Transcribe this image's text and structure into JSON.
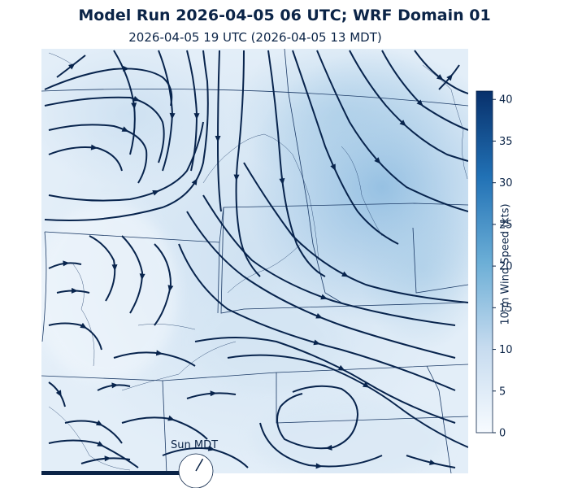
{
  "header": {
    "title": "Model Run 2026-04-05 06 UTC; WRF Domain 01",
    "subtitle": "2026-04-05 19 UTC  (2026-04-05 13 MDT)"
  },
  "colorbar": {
    "label": "10-m Wind Speed (kts)",
    "min": 0,
    "max": 41,
    "ticks": [
      "0",
      "5",
      "10",
      "15",
      "20",
      "25",
      "30",
      "35",
      "40"
    ],
    "colormap": "Blues",
    "color_low": "#f7fbff",
    "color_high": "#08306b"
  },
  "map": {
    "field": "10-m wind streamlines over wind speed shading",
    "streamline_color": "#08244d",
    "boundary_color": "#1b3a66"
  },
  "time_indicator": {
    "label": "Sun MDT",
    "hour_local": 13,
    "bar_color": "#0b2447"
  }
}
